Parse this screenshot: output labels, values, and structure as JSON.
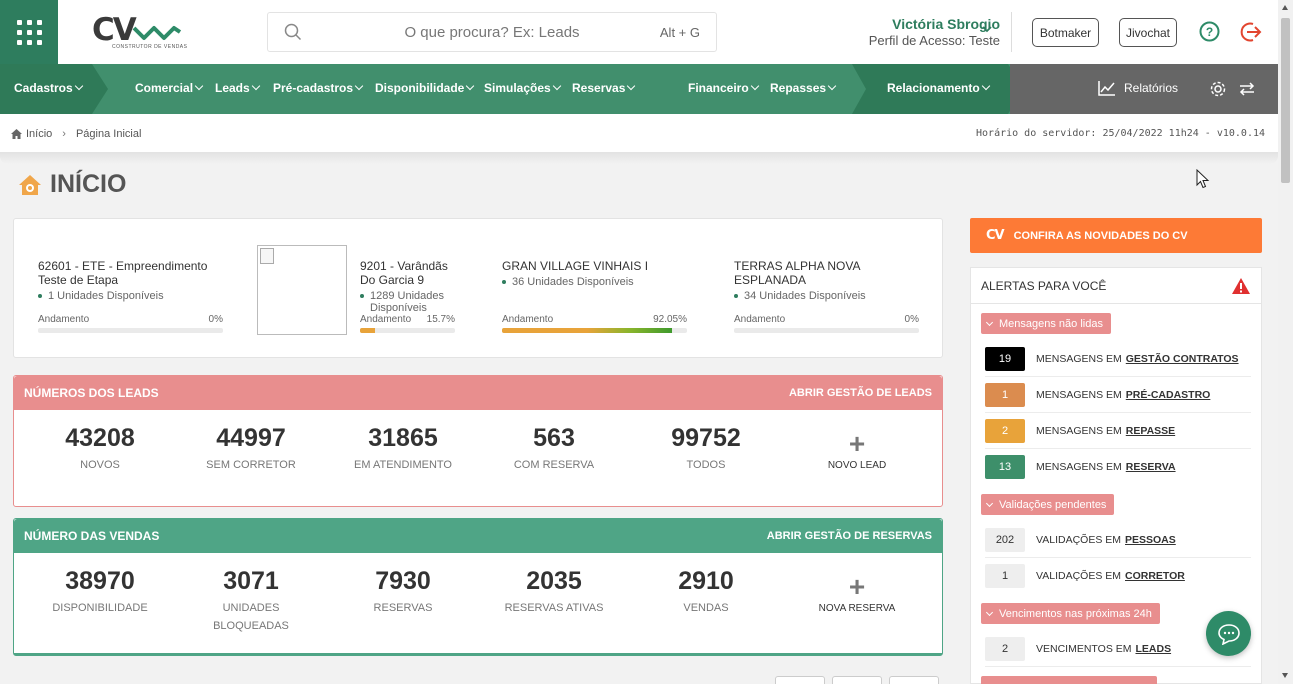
{
  "header": {
    "logo_text": "CV",
    "logo_subtitle": "CONSTRUTOR DE VENDAS",
    "search_placeholder": "O que procura? Ex: Leads",
    "search_shortcut": "Alt + G",
    "user_name": "Victória Sbrogio",
    "user_profile": "Perfil de Acesso: Teste",
    "botmaker_label": "Botmaker",
    "jivochat_label": "Jivochat"
  },
  "nav": {
    "cadastros": "Cadastros",
    "comercial": "Comercial",
    "leads": "Leads",
    "pre_cadastros": "Pré-cadastros",
    "disponibilidade": "Disponibilidade",
    "simulacoes": "Simulações",
    "reservas": "Reservas",
    "financeiro": "Financeiro",
    "repasses": "Repasses",
    "relacionamento": "Relacionamento",
    "relatorios": "Relatórios"
  },
  "breadcrumb": {
    "home": "Início",
    "current": "Página Inicial",
    "server_time": "Horário do servidor: 25/04/2022 11h24 - v10.0.14"
  },
  "page": {
    "title": "INÍCIO"
  },
  "projects": [
    {
      "name": "62601 - ETE - Empreendimento Teste de Etapa",
      "units": "1 Unidades Disponíveis",
      "progress_label": "Andamento",
      "progress_text": "0%",
      "progress": 0
    },
    {
      "name": "9201 - Varândãs Do Garcia 9",
      "units": "1289 Unidades Disponíveis",
      "progress_label": "Andamento",
      "progress_text": "15.7%",
      "progress": 15.7
    },
    {
      "name": "GRAN VILLAGE VINHAIS I",
      "units": "36 Unidades Disponíveis",
      "progress_label": "Andamento",
      "progress_text": "92.05%",
      "progress": 92.05
    },
    {
      "name": "TERRAS ALPHA NOVA ESPLANADA",
      "units": "34 Unidades Disponíveis",
      "progress_label": "Andamento",
      "progress_text": "0%",
      "progress": 0
    }
  ],
  "leads": {
    "title": "NÚMEROS DOS LEADS",
    "link": "ABRIR GESTÃO DE LEADS",
    "stats": [
      {
        "value": "43208",
        "label": "NOVOS"
      },
      {
        "value": "44997",
        "label": "SEM CORRETOR"
      },
      {
        "value": "31865",
        "label": "EM ATENDIMENTO"
      },
      {
        "value": "563",
        "label": "COM RESERVA"
      },
      {
        "value": "99752",
        "label": "TODOS"
      }
    ],
    "add_label": "NOVO LEAD",
    "accent": "#e88e8e"
  },
  "sales": {
    "title": "NÚMERO DAS VENDAS",
    "link": "ABRIR GESTÃO DE RESERVAS",
    "stats": [
      {
        "value": "38970",
        "label": "DISPONIBILIDADE"
      },
      {
        "value": "3071",
        "label": "UNIDADES BLOQUEADAS"
      },
      {
        "value": "7930",
        "label": "RESERVAS"
      },
      {
        "value": "2035",
        "label": "RESERVAS ATIVAS"
      },
      {
        "value": "2910",
        "label": "VENDAS"
      }
    ],
    "add_label": "NOVA RESERVA",
    "accent": "#4fa586"
  },
  "news_button": {
    "logo": "CV",
    "label": "CONFIRA AS NOVIDADES DO CV"
  },
  "alerts": {
    "title": "ALERTAS PARA VOCÊ",
    "group_messages": "Mensagens não lidas",
    "group_validations": "Validações pendentes",
    "group_due": "Vencimentos nas próximas 24h",
    "rows": [
      {
        "count": "19",
        "text": "MENSAGENS EM",
        "link": "GESTÃO CONTRATOS",
        "color": "#000000"
      },
      {
        "count": "1",
        "text": "MENSAGENS EM",
        "link": "PRÉ-CADASTRO",
        "color": "#db8c4f"
      },
      {
        "count": "2",
        "text": "MENSAGENS EM",
        "link": "REPASSE",
        "color": "#e8a33a"
      },
      {
        "count": "13",
        "text": "MENSAGENS EM",
        "link": "RESERVA",
        "color": "#3d8f6a"
      },
      {
        "count": "202",
        "text": "VALIDAÇÕES EM",
        "link": "PESSOAS",
        "color": "#eeeeee"
      },
      {
        "count": "1",
        "text": "VALIDAÇÕES EM",
        "link": "CORRETOR",
        "color": "#eeeeee"
      },
      {
        "count": "2",
        "text": "VENCIMENTOS EM",
        "link": "LEADS",
        "color": "#eeeeee"
      }
    ]
  },
  "colors": {
    "brand_green": "#2e7d5e",
    "nav_green": "#418f6d",
    "nav_green_dark": "#2f7a58",
    "orange": "#fd7a36",
    "alert_red": "#e03030"
  }
}
